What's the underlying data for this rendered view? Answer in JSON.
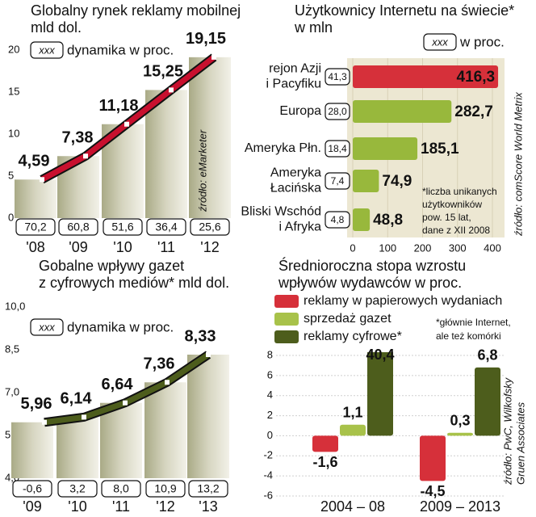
{
  "chart_data": [
    {
      "type": "line",
      "title": [
        "Globalny rynek reklamy mobilnej",
        "mld dol."
      ],
      "legend_key": "xxx",
      "legend_label": "dynamika w proc.",
      "categories": [
        "'08",
        "'09",
        "'10",
        "'11",
        "'12"
      ],
      "values": [
        4.59,
        7.38,
        11.18,
        15.25,
        19.15
      ],
      "value_labels": [
        "4,59",
        "7,38",
        "11,18",
        "15,25",
        "19,15"
      ],
      "dynamics": [
        "70,2",
        "60,8",
        "51,6",
        "36,4",
        "25,6"
      ],
      "color": "#c8102e",
      "ylim": [
        0,
        20
      ],
      "yticks": [
        0,
        5,
        10,
        15,
        20
      ],
      "source": "źródło: eMarketer"
    },
    {
      "type": "hbar",
      "title": [
        "Użytkownicy Internetu na świecie*",
        "w mln"
      ],
      "legend_key": "xxx",
      "legend_label": "w proc.",
      "categories": [
        [
          "rejon Azji",
          "i Pacyfiku"
        ],
        [
          "Europa"
        ],
        [
          "Ameryka Płn."
        ],
        [
          "Ameryka",
          "Łacińska"
        ],
        [
          "Bliski Wschód",
          "i Afryka"
        ]
      ],
      "values": [
        416.3,
        282.7,
        185.1,
        74.9,
        48.8
      ],
      "value_labels": [
        "416,3",
        "282,7",
        "185,1",
        "74,9",
        "48,8"
      ],
      "dynamics": [
        "41,3",
        "28,0",
        "18,4",
        "7,4",
        "4,8"
      ],
      "colors": [
        "#d6303a",
        "#98b83c",
        "#98b83c",
        "#98b83c",
        "#98b83c"
      ],
      "xlim": [
        0,
        435
      ],
      "xticks": [
        0,
        100,
        200,
        300,
        400
      ],
      "note": [
        "*liczba unikanych",
        "użytkowników",
        "pow. 15 lat,",
        "dane z XII 2008"
      ],
      "source": "źródło: comScore World Metrix"
    },
    {
      "type": "line",
      "title": [
        "Gobalne wpływy gazet",
        "z cyfrowych mediów* mld dol."
      ],
      "legend_key": "xxx",
      "legend_label": "dynamika w proc.",
      "categories": [
        "'09",
        "'10",
        "'11",
        "'12",
        "'13"
      ],
      "values": [
        5.96,
        6.14,
        6.64,
        7.36,
        8.33
      ],
      "value_labels": [
        "5,96",
        "6,14",
        "6,64",
        "7,36",
        "8,33"
      ],
      "dynamics": [
        "-0,6",
        "3,2",
        "8,0",
        "10,9",
        "13,2"
      ],
      "color": "#4d5d1c",
      "ylim": [
        4,
        10
      ],
      "yticks": [
        {
          "value": 4,
          "label": "4,0"
        },
        {
          "value": 5.5,
          "label": "5,5"
        },
        {
          "value": 7,
          "label": "7,0"
        },
        {
          "value": 8.5,
          "label": "8,5"
        },
        {
          "value": 10,
          "label": "10,0"
        }
      ]
    },
    {
      "type": "bar",
      "title": [
        "Średnioroczna stopa wzrostu",
        "wpływów wydawców w proc."
      ],
      "categories": [
        "2004 – 08",
        "2009 – 2013"
      ],
      "series": [
        {
          "name": "reklamy w papierowych wydaniach",
          "color": "#d6303a",
          "values": [
            -1.6,
            -4.5
          ],
          "value_labels": [
            "-1,6",
            "-4,5"
          ]
        },
        {
          "name": "sprzedaż gazet",
          "color": "#a8c24a",
          "values": [
            1.1,
            0.3
          ],
          "value_labels": [
            "1,1",
            "0,3"
          ]
        },
        {
          "name": "reklamy cyfrowe*",
          "color": "#4d5d1c",
          "values": [
            40.4,
            6.8
          ],
          "value_labels": [
            "40,4",
            "6,8"
          ]
        }
      ],
      "ylim": [
        -6,
        8
      ],
      "yticks": [
        -6,
        -4,
        -2,
        0,
        2,
        4,
        6,
        8
      ],
      "grid": true,
      "note": [
        "*głównie Internet,",
        "ale też komórki"
      ],
      "source": [
        "źródło: PwC, Wilkofsky",
        "Gruen Associates"
      ]
    }
  ]
}
